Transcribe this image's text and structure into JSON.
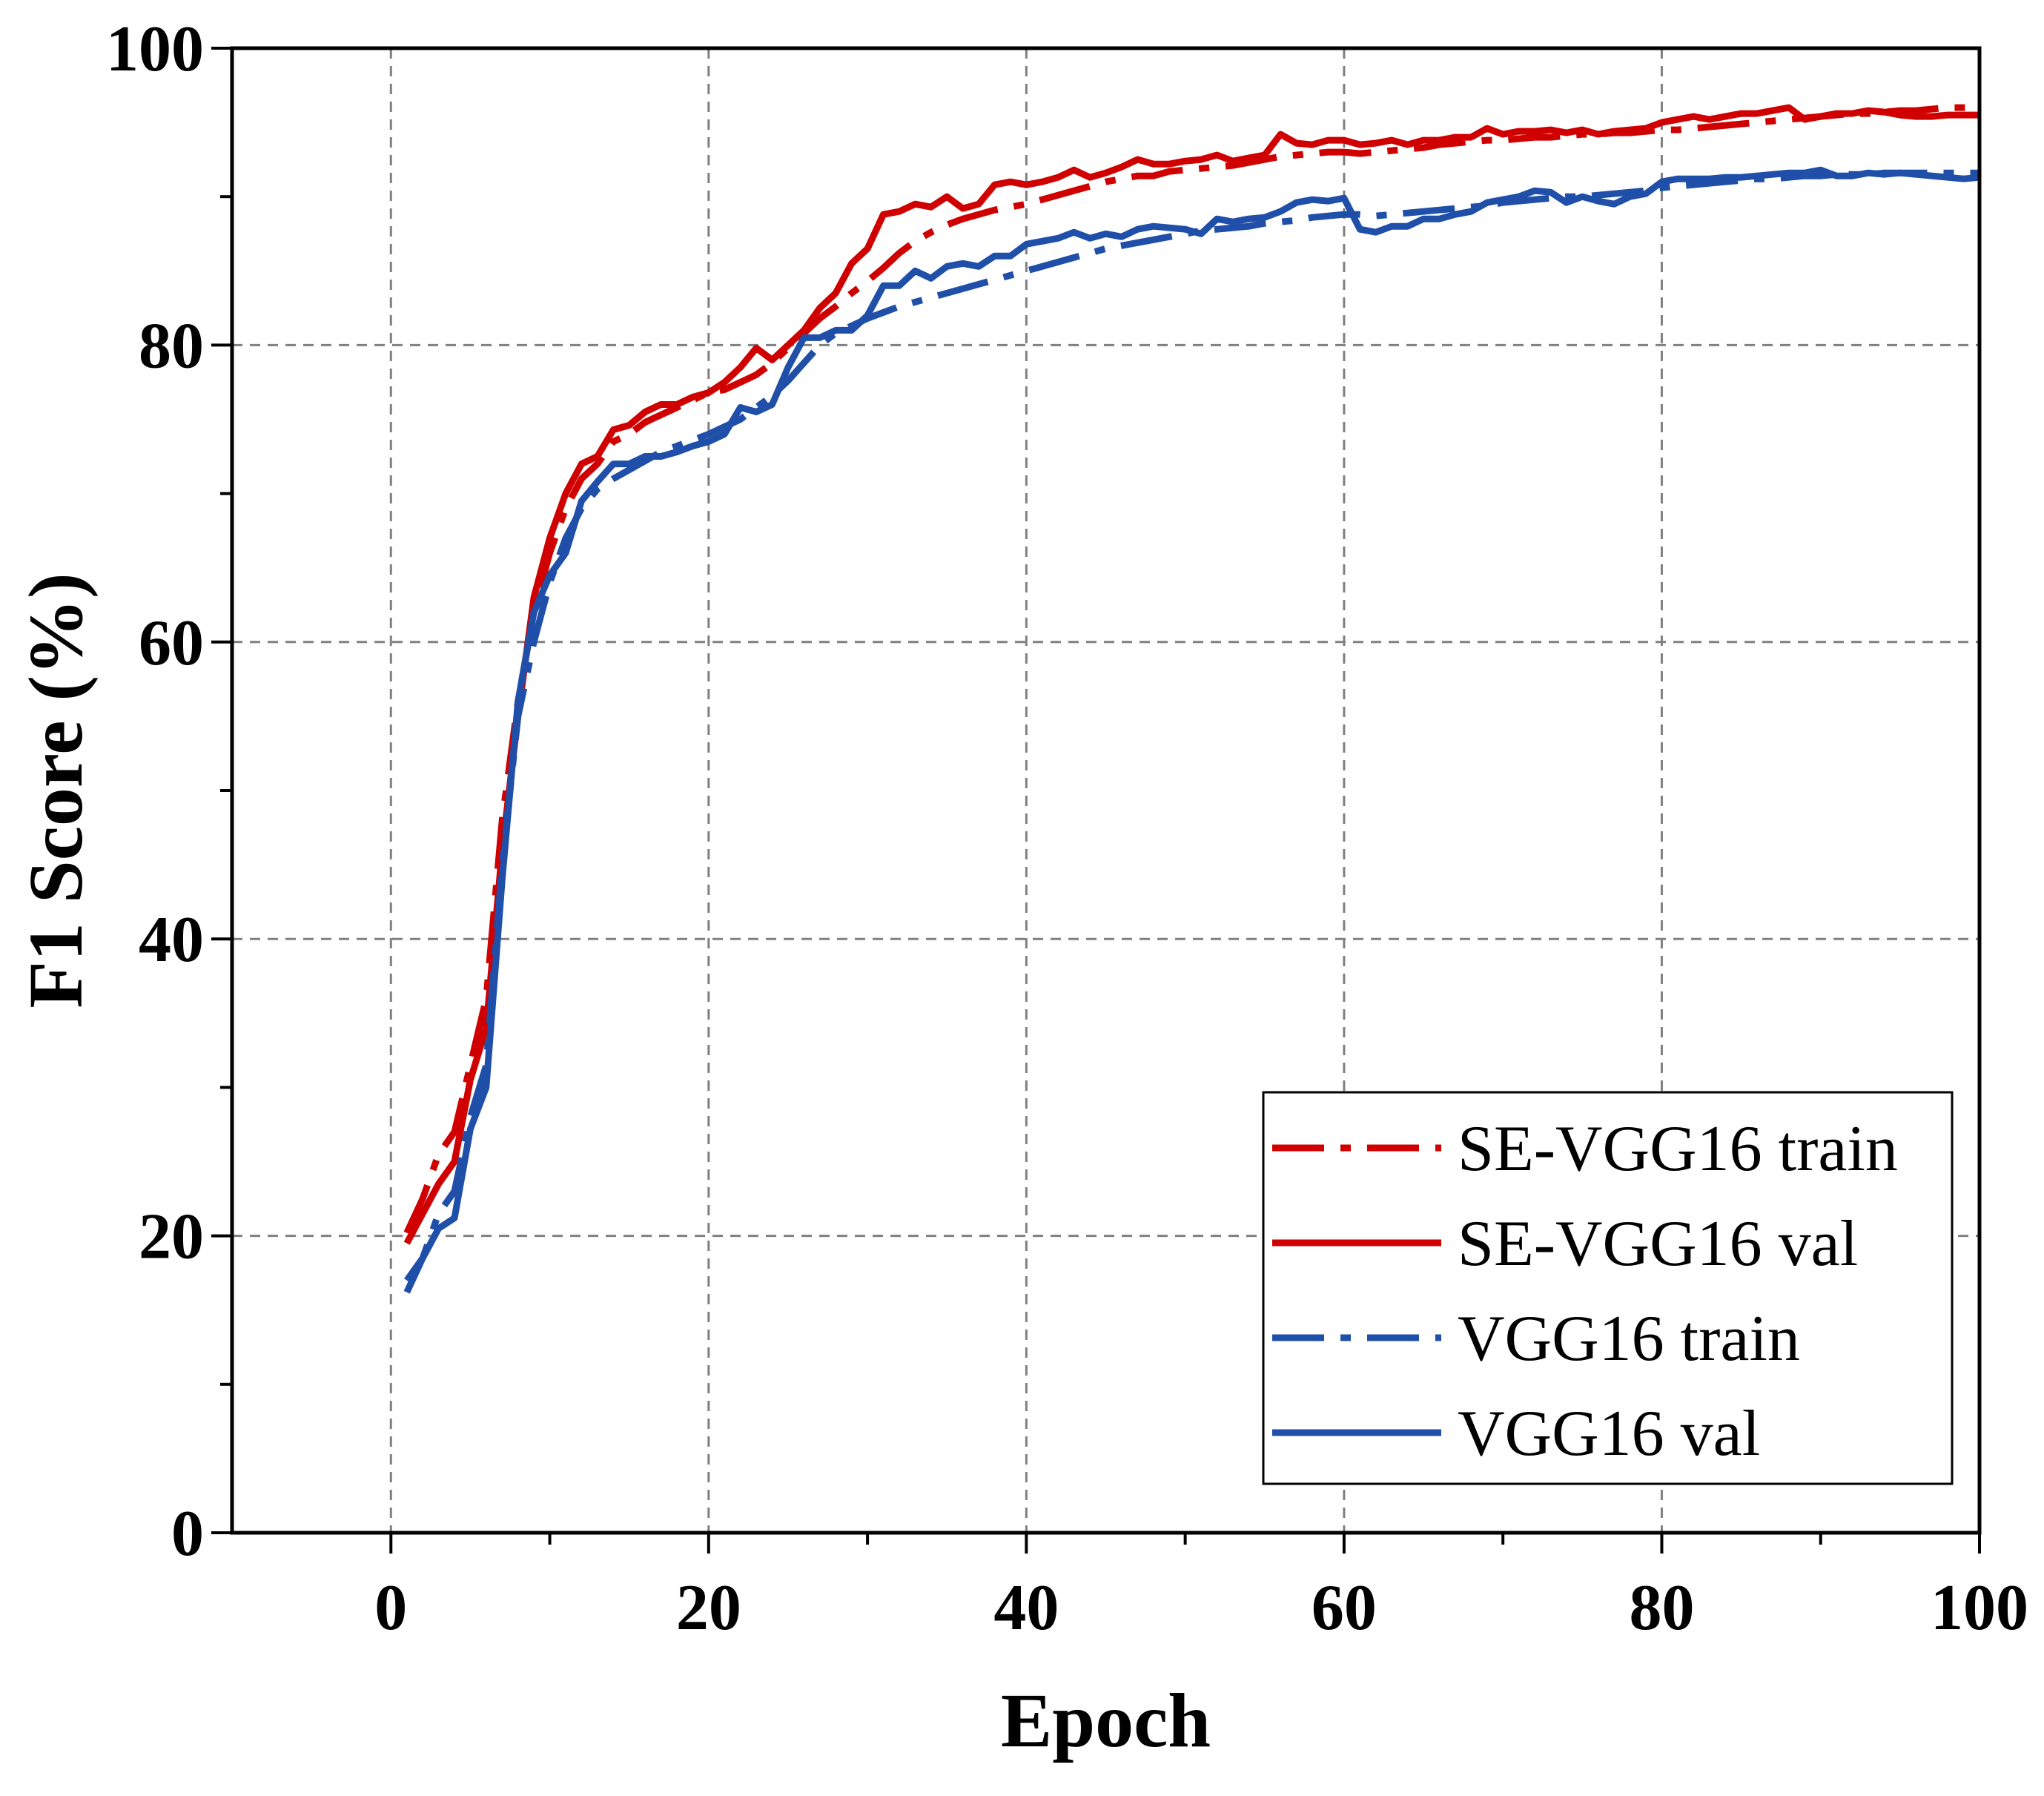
{
  "chart_data": {
    "type": "line",
    "xlabel": "Epoch",
    "ylabel": "F1 Score (%)",
    "xlim": [
      -10,
      100
    ],
    "ylim": [
      0,
      100
    ],
    "x_ticks": [
      0,
      20,
      40,
      60,
      80,
      100
    ],
    "y_ticks": [
      0,
      20,
      40,
      60,
      80,
      100
    ],
    "x_tick_labels": [
      "0",
      "20",
      "40",
      "60",
      "80",
      "100"
    ],
    "y_tick_labels": [
      "0",
      "20",
      "40",
      "60",
      "80",
      "100"
    ],
    "grid": true,
    "legend_position": "bottom-right",
    "x": [
      1,
      2,
      3,
      4,
      5,
      6,
      7,
      8,
      9,
      10,
      11,
      12,
      13,
      14,
      15,
      16,
      17,
      18,
      19,
      20,
      21,
      22,
      23,
      24,
      25,
      26,
      27,
      28,
      29,
      30,
      31,
      32,
      33,
      34,
      35,
      36,
      37,
      38,
      39,
      40,
      41,
      42,
      43,
      44,
      45,
      46,
      47,
      48,
      49,
      50,
      51,
      52,
      53,
      54,
      55,
      56,
      57,
      58,
      59,
      60,
      61,
      62,
      63,
      64,
      65,
      66,
      67,
      68,
      69,
      70,
      71,
      72,
      73,
      74,
      75,
      76,
      77,
      78,
      79,
      80,
      81,
      82,
      83,
      84,
      85,
      86,
      87,
      88,
      89,
      90,
      91,
      92,
      93,
      94,
      95,
      96,
      97,
      98,
      99,
      100
    ],
    "series": [
      {
        "name": "SE-VGG16 train",
        "color": "#d00000",
        "style": "dashdot",
        "values": [
          20.2,
          22.5,
          25.5,
          27,
          31.5,
          36,
          48,
          56,
          62,
          66,
          69,
          71,
          72,
          73.5,
          74,
          74.8,
          75.3,
          75.8,
          76.3,
          76.8,
          77,
          77.5,
          78,
          78.8,
          79.8,
          80.8,
          81.8,
          82.6,
          83.5,
          84.3,
          85.2,
          86.2,
          87,
          87.6,
          88.1,
          88.5,
          88.8,
          89.1,
          89.3,
          89.5,
          89.8,
          90.1,
          90.4,
          90.7,
          91,
          91.2,
          91.4,
          91.4,
          91.7,
          91.8,
          91.9,
          92,
          92.1,
          92.3,
          92.5,
          92.7,
          92.8,
          92.9,
          93,
          93,
          92.9,
          93,
          93.1,
          93.2,
          93.3,
          93.5,
          93.6,
          93.7,
          93.8,
          93.8,
          93.9,
          94,
          94,
          94.1,
          94.2,
          94.2,
          94.3,
          94.3,
          94.4,
          94.5,
          94.5,
          94.6,
          94.7,
          94.8,
          94.9,
          95,
          95.1,
          95.2,
          95.3,
          95.4,
          95.5,
          95.6,
          95.6,
          95.7,
          95.8,
          95.8,
          95.9,
          96,
          96,
          96
        ]
      },
      {
        "name": "SE-VGG16 val",
        "color": "#d00000",
        "style": "solid",
        "values": [
          19.5,
          21.5,
          23.5,
          25,
          30.5,
          34,
          46,
          55,
          63,
          67,
          70,
          72,
          72.5,
          74.3,
          74.6,
          75.5,
          76,
          76,
          76.5,
          76.8,
          77.5,
          78.5,
          79.8,
          79,
          80,
          81,
          82.5,
          83.5,
          85.5,
          86.5,
          88.8,
          89,
          89.5,
          89.3,
          90,
          89.2,
          89.5,
          90.8,
          91,
          90.8,
          91,
          91.3,
          91.8,
          91.3,
          91.6,
          92,
          92.5,
          92.2,
          92.2,
          92.4,
          92.5,
          92.8,
          92.4,
          92.6,
          92.8,
          94.2,
          93.6,
          93.5,
          93.8,
          93.8,
          93.5,
          93.6,
          93.8,
          93.5,
          93.8,
          93.8,
          94,
          94,
          94.6,
          94.2,
          94.4,
          94.4,
          94.5,
          94.3,
          94.5,
          94.2,
          94.4,
          94.5,
          94.6,
          95,
          95.2,
          95.4,
          95.2,
          95.4,
          95.6,
          95.6,
          95.8,
          96,
          95.2,
          95.4,
          95.6,
          95.6,
          95.8,
          95.7,
          95.5,
          95.4,
          95.4,
          95.5,
          95.5,
          95.5
        ]
      },
      {
        "name": "VGG16 train",
        "color": "#1f4fa8",
        "style": "dashdot",
        "values": [
          16.2,
          18.5,
          21.5,
          23,
          28,
          31.5,
          45,
          55,
          60,
          64,
          67,
          69,
          70.3,
          71,
          71.6,
          72.2,
          72.8,
          73.2,
          73.6,
          74,
          74.5,
          75,
          75.8,
          76.6,
          77.6,
          78.8,
          80,
          80.8,
          81.3,
          81.8,
          82.2,
          82.6,
          82.9,
          83.2,
          83.5,
          83.8,
          84.1,
          84.4,
          84.7,
          85,
          85.3,
          85.6,
          85.9,
          86.2,
          86.5,
          86.7,
          86.9,
          87.1,
          87.3,
          87.5,
          87.7,
          87.8,
          87.9,
          88,
          88.2,
          88.3,
          88.4,
          88.6,
          88.7,
          88.8,
          88.8,
          88.7,
          88.8,
          88.9,
          89,
          89.1,
          89.2,
          89.3,
          89.4,
          89.6,
          89.7,
          89.8,
          89.9,
          90,
          90,
          90.1,
          90.2,
          90.3,
          90.4,
          90.6,
          90.7,
          90.8,
          90.9,
          91,
          91.1,
          91.2,
          91.2,
          91.3,
          91.4,
          91.4,
          91.5,
          91.5,
          91.5,
          91.6,
          91.6,
          91.6,
          91.6,
          91.6,
          91.6,
          91.6
        ]
      },
      {
        "name": "VGG16 val",
        "color": "#1f4fa8",
        "style": "solid",
        "values": [
          17,
          18.5,
          20.5,
          21.2,
          27.2,
          30,
          44,
          56,
          62,
          64.5,
          66,
          69.5,
          70.8,
          72,
          72,
          72.5,
          72.5,
          72.8,
          73.2,
          73.5,
          74,
          75.8,
          75.5,
          76,
          78.5,
          80.5,
          80.5,
          81,
          81,
          82,
          84,
          84,
          85,
          84.5,
          85.3,
          85.5,
          85.3,
          86,
          86,
          86.8,
          87,
          87.2,
          87.6,
          87.2,
          87.5,
          87.3,
          87.8,
          88,
          87.9,
          87.8,
          87.5,
          88.5,
          88.3,
          88.5,
          88.6,
          89,
          89.6,
          89.8,
          89.7,
          89.9,
          87.8,
          87.6,
          88,
          88,
          88.5,
          88.5,
          88.8,
          89,
          89.6,
          89.8,
          90,
          90.4,
          90.3,
          89.6,
          90,
          89.7,
          89.5,
          90,
          90.2,
          91,
          91.2,
          91.2,
          91.2,
          91.3,
          91.3,
          91.4,
          91.5,
          91.6,
          91.6,
          91.8,
          91.4,
          91.4,
          91.6,
          91.5,
          91.6,
          91.5,
          91.4,
          91.3,
          91.2,
          91.3
        ]
      }
    ]
  }
}
